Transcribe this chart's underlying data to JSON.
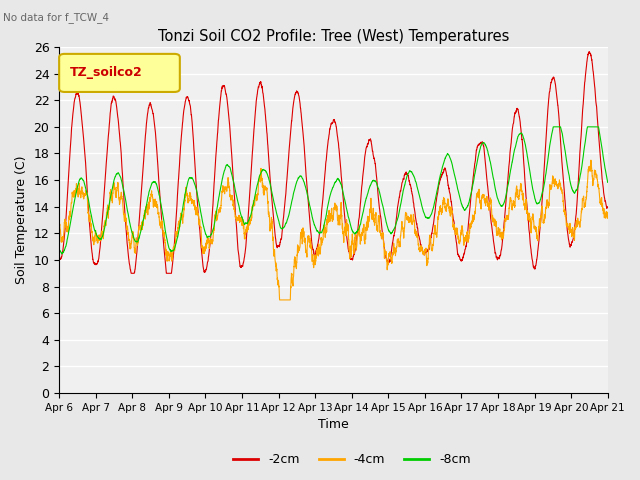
{
  "title": "Tonzi Soil CO2 Profile: Tree (West) Temperatures",
  "subtitle": "No data for f_TCW_4",
  "xlabel": "Time",
  "ylabel": "Soil Temperature (C)",
  "legend_label": "TZ_soilco2",
  "ylim": [
    0,
    26
  ],
  "yticks": [
    0,
    2,
    4,
    6,
    8,
    10,
    12,
    14,
    16,
    18,
    20,
    22,
    24,
    26
  ],
  "xtick_labels": [
    "Apr 6",
    "Apr 7",
    "Apr 8",
    "Apr 9",
    "Apr 10",
    "Apr 11",
    "Apr 12",
    "Apr 13",
    "Apr 14",
    "Apr 15",
    "Apr 16",
    "Apr 17",
    "Apr 18",
    "Apr 19",
    "Apr 20",
    "Apr 21"
  ],
  "line_colors": [
    "#dd0000",
    "#ffa500",
    "#00cc00"
  ],
  "line_labels": [
    "-2cm",
    "-4cm",
    "-8cm"
  ],
  "background_color": "#e8e8e8",
  "plot_bg_color": "#f0f0f0",
  "grid_color": "#ffffff",
  "figsize": [
    6.4,
    4.8
  ],
  "dpi": 100
}
